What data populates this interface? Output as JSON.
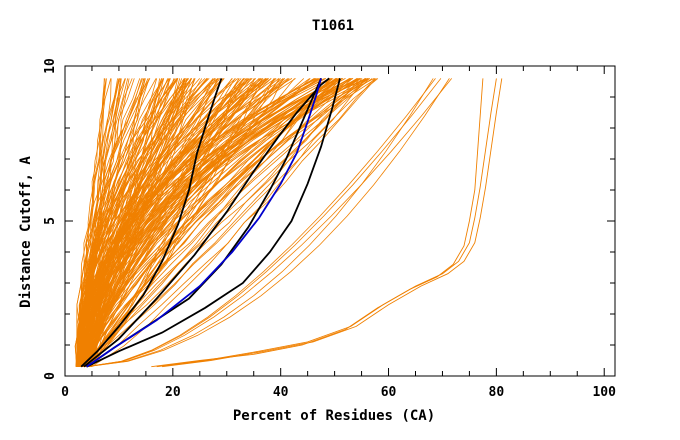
{
  "chart_data": {
    "type": "line",
    "title": "T1061",
    "xlabel": "Percent of Residues (CA)",
    "ylabel": "Distance Cutoff, A",
    "xlim": [
      0,
      102
    ],
    "ylim": [
      0,
      10
    ],
    "x_ticks": [
      0,
      20,
      40,
      60,
      80,
      100
    ],
    "y_ticks": [
      0,
      5,
      10
    ],
    "grid": false,
    "colors": {
      "background_curves": "#f08000",
      "highlight_black": "#000000",
      "highlight_blue": "#0000cc"
    },
    "background_curve_count": 220,
    "highlight_series": [
      {
        "color": "#000000",
        "x": [
          3,
          6,
          10,
          14.5,
          18,
          21,
          23,
          24.5,
          26.5,
          28,
          29
        ],
        "y": [
          0.3,
          0.8,
          1.6,
          2.6,
          3.7,
          4.9,
          6.0,
          7.2,
          8.3,
          9.1,
          9.6
        ]
      },
      {
        "color": "#000000",
        "x": [
          3.5,
          10,
          17,
          24,
          30,
          35,
          39.5,
          43,
          45.5,
          47.5,
          49
        ],
        "y": [
          0.3,
          1.2,
          2.5,
          3.9,
          5.3,
          6.6,
          7.7,
          8.5,
          9.0,
          9.4,
          9.6
        ]
      },
      {
        "color": "#000000",
        "x": [
          4,
          9,
          16,
          23,
          29,
          34,
          38,
          41,
          43.5,
          45.5,
          47.5
        ],
        "y": [
          0.3,
          0.9,
          1.7,
          2.5,
          3.6,
          4.8,
          6.0,
          7.0,
          8.0,
          8.8,
          9.6
        ]
      },
      {
        "color": "#000000",
        "x": [
          4,
          10,
          18,
          26,
          33,
          38,
          42,
          45,
          47.5,
          49.5,
          51
        ],
        "y": [
          0.3,
          0.8,
          1.4,
          2.2,
          3.0,
          4.0,
          5.0,
          6.2,
          7.4,
          8.6,
          9.6
        ]
      },
      {
        "color": "#0000cc",
        "x": [
          4,
          9,
          17,
          25,
          31,
          36,
          40,
          43,
          45,
          46.5,
          47.5
        ],
        "y": [
          0.3,
          0.9,
          1.8,
          2.9,
          4.0,
          5.1,
          6.2,
          7.2,
          8.2,
          9.0,
          9.6
        ]
      }
    ],
    "outlier_series": [
      {
        "color": "#f08000",
        "x": [
          16,
          25,
          35,
          44,
          52,
          58,
          64,
          69,
          72,
          74,
          75,
          76,
          76.5,
          77,
          77.5
        ],
        "y": [
          0.3,
          0.5,
          0.7,
          1.0,
          1.5,
          2.2,
          2.8,
          3.2,
          3.6,
          4.2,
          5.0,
          6.0,
          7.2,
          8.4,
          9.6
        ]
      },
      {
        "color": "#f08000",
        "x": [
          17,
          26,
          36,
          45,
          53,
          59,
          65,
          70,
          73,
          75,
          76,
          77,
          78,
          79,
          80
        ],
        "y": [
          0.3,
          0.5,
          0.8,
          1.1,
          1.6,
          2.3,
          2.9,
          3.3,
          3.7,
          4.3,
          5.1,
          6.1,
          7.3,
          8.5,
          9.6
        ]
      },
      {
        "color": "#f08000",
        "x": [
          18,
          27,
          37,
          46,
          54,
          60,
          66,
          71,
          74,
          76,
          77,
          78,
          79,
          80,
          81
        ],
        "y": [
          0.3,
          0.5,
          0.8,
          1.1,
          1.6,
          2.3,
          2.9,
          3.3,
          3.7,
          4.3,
          5.1,
          6.1,
          7.3,
          8.5,
          9.6
        ]
      }
    ]
  }
}
